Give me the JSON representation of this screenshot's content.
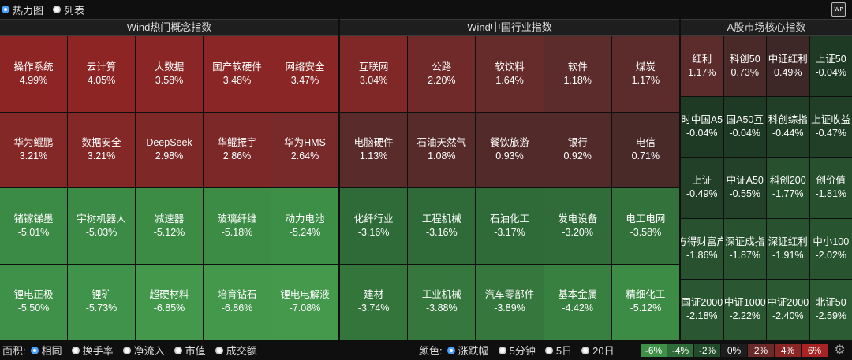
{
  "view_modes": [
    {
      "label": "热力图",
      "selected": true
    },
    {
      "label": "列表",
      "selected": false
    }
  ],
  "sections": [
    {
      "title": "Wind热门概念指数",
      "cells": [
        {
          "name": "操作系统",
          "pct": "4.99%",
          "color": "#8e2525"
        },
        {
          "name": "云计算",
          "pct": "4.05%",
          "color": "#8e2525"
        },
        {
          "name": "大数据",
          "pct": "3.58%",
          "color": "#8a2626"
        },
        {
          "name": "国产软硬件",
          "pct": "3.48%",
          "color": "#8a2626"
        },
        {
          "name": "网络安全",
          "pct": "3.47%",
          "color": "#8a2626"
        },
        {
          "name": "华为鲲鹏",
          "pct": "3.21%",
          "color": "#842727"
        },
        {
          "name": "数据安全",
          "pct": "3.21%",
          "color": "#842727"
        },
        {
          "name": "DeepSeek",
          "pct": "2.98%",
          "color": "#7e2828"
        },
        {
          "name": "华鲲振宇",
          "pct": "2.86%",
          "color": "#7c2828"
        },
        {
          "name": "华为HMS",
          "pct": "2.64%",
          "color": "#782929"
        },
        {
          "name": "锗镓锑墨",
          "pct": "-5.01%",
          "color": "#3b8a45"
        },
        {
          "name": "宇树机器人",
          "pct": "-5.03%",
          "color": "#3b8a45"
        },
        {
          "name": "减速器",
          "pct": "-5.12%",
          "color": "#3c8c46"
        },
        {
          "name": "玻璃纤维",
          "pct": "-5.18%",
          "color": "#3c8c46"
        },
        {
          "name": "动力电池",
          "pct": "-5.24%",
          "color": "#3d8e47"
        },
        {
          "name": "锂电正极",
          "pct": "-5.50%",
          "color": "#3f9149"
        },
        {
          "name": "锂矿",
          "pct": "-5.73%",
          "color": "#40934a"
        },
        {
          "name": "超硬材料",
          "pct": "-6.85%",
          "color": "#43984c"
        },
        {
          "name": "培育钻石",
          "pct": "-6.86%",
          "color": "#43984c"
        },
        {
          "name": "锂电电解液",
          "pct": "-7.08%",
          "color": "#44994d"
        }
      ]
    },
    {
      "title": "Wind中国行业指数",
      "cells": [
        {
          "name": "互联网",
          "pct": "3.04%",
          "color": "#802828"
        },
        {
          "name": "公路",
          "pct": "2.20%",
          "color": "#702a2a"
        },
        {
          "name": "软饮料",
          "pct": "1.64%",
          "color": "#662b2b"
        },
        {
          "name": "软件",
          "pct": "1.18%",
          "color": "#5c2b2b"
        },
        {
          "name": "煤炭",
          "pct": "1.17%",
          "color": "#5c2b2b"
        },
        {
          "name": "电脑硬件",
          "pct": "1.13%",
          "color": "#5a2b2b"
        },
        {
          "name": "石油天然气",
          "pct": "1.08%",
          "color": "#582b2b"
        },
        {
          "name": "餐饮旅游",
          "pct": "0.93%",
          "color": "#532a2a"
        },
        {
          "name": "银行",
          "pct": "0.92%",
          "color": "#532a2a"
        },
        {
          "name": "电信",
          "pct": "0.71%",
          "color": "#4a2929"
        },
        {
          "name": "化纤行业",
          "pct": "-3.16%",
          "color": "#2f6b38"
        },
        {
          "name": "工程机械",
          "pct": "-3.16%",
          "color": "#2f6b38"
        },
        {
          "name": "石油化工",
          "pct": "-3.17%",
          "color": "#2f6b38"
        },
        {
          "name": "发电设备",
          "pct": "-3.20%",
          "color": "#306c39"
        },
        {
          "name": "电工电网",
          "pct": "-3.58%",
          "color": "#33723b"
        },
        {
          "name": "建材",
          "pct": "-3.74%",
          "color": "#34753c"
        },
        {
          "name": "工业机械",
          "pct": "-3.88%",
          "color": "#35773d"
        },
        {
          "name": "汽车零部件",
          "pct": "-3.89%",
          "color": "#35773d"
        },
        {
          "name": "基本金属",
          "pct": "-4.42%",
          "color": "#38803f"
        },
        {
          "name": "精细化工",
          "pct": "-5.12%",
          "color": "#3c8c46"
        }
      ]
    },
    {
      "title": "A股市场核心指数",
      "cells": [
        {
          "name": "红利",
          "pct": "1.17%",
          "color": "#5c2b2b"
        },
        {
          "name": "科创50",
          "pct": "0.73%",
          "color": "#4a2929"
        },
        {
          "name": "中证红利",
          "pct": "0.49%",
          "color": "#3e2727"
        },
        {
          "name": "上证50",
          "pct": "-0.04%",
          "color": "#1f3a24"
        },
        {
          "name": "时中国A5",
          "pct": "-0.04%",
          "color": "#1f3a24"
        },
        {
          "name": "国A50互",
          "pct": "-0.04%",
          "color": "#1f3a24"
        },
        {
          "name": "科创综指",
          "pct": "-0.44%",
          "color": "#213f27"
        },
        {
          "name": "上证收益",
          "pct": "-0.47%",
          "color": "#213f27"
        },
        {
          "name": "上证",
          "pct": "-0.49%",
          "color": "#224028"
        },
        {
          "name": "中证A50",
          "pct": "-0.55%",
          "color": "#224128"
        },
        {
          "name": "科创200",
          "pct": "-1.77%",
          "color": "#27502e"
        },
        {
          "name": "创价值",
          "pct": "-1.81%",
          "color": "#27502e"
        },
        {
          "name": "方得财富产",
          "pct": "-1.86%",
          "color": "#28512f"
        },
        {
          "name": "深证成指",
          "pct": "-1.87%",
          "color": "#28512f"
        },
        {
          "name": "深证红利",
          "pct": "-1.91%",
          "color": "#28522f"
        },
        {
          "name": "中小100",
          "pct": "-2.02%",
          "color": "#295430"
        },
        {
          "name": "国证2000",
          "pct": "-2.18%",
          "color": "#2a5731"
        },
        {
          "name": "中证1000",
          "pct": "-2.22%",
          "color": "#2a5731"
        },
        {
          "name": "中证2000",
          "pct": "-2.40%",
          "color": "#2b5a32"
        },
        {
          "name": "北证50",
          "pct": "-2.59%",
          "color": "#2c5c33"
        }
      ]
    }
  ],
  "bottom": {
    "area_label": "面积:",
    "area_options": [
      {
        "label": "相同",
        "selected": true
      },
      {
        "label": "换手率",
        "selected": false
      },
      {
        "label": "净流入",
        "selected": false
      },
      {
        "label": "市值",
        "selected": false
      },
      {
        "label": "成交额",
        "selected": false
      }
    ],
    "color_label": "颜色:",
    "color_options": [
      {
        "label": "涨跌幅",
        "selected": true
      },
      {
        "label": "5分钟",
        "selected": false
      },
      {
        "label": "5日",
        "selected": false
      },
      {
        "label": "20日",
        "selected": false
      }
    ],
    "legend": [
      {
        "label": "-6%",
        "color": "#3f9149"
      },
      {
        "label": "-4%",
        "color": "#2f6b38"
      },
      {
        "label": "-2%",
        "color": "#234a2a"
      },
      {
        "label": "0%",
        "color": "#1d1d1d"
      },
      {
        "label": "2%",
        "color": "#6a2a2a"
      },
      {
        "label": "4%",
        "color": "#8a2626"
      },
      {
        "label": "6%",
        "color": "#a82424"
      }
    ]
  }
}
